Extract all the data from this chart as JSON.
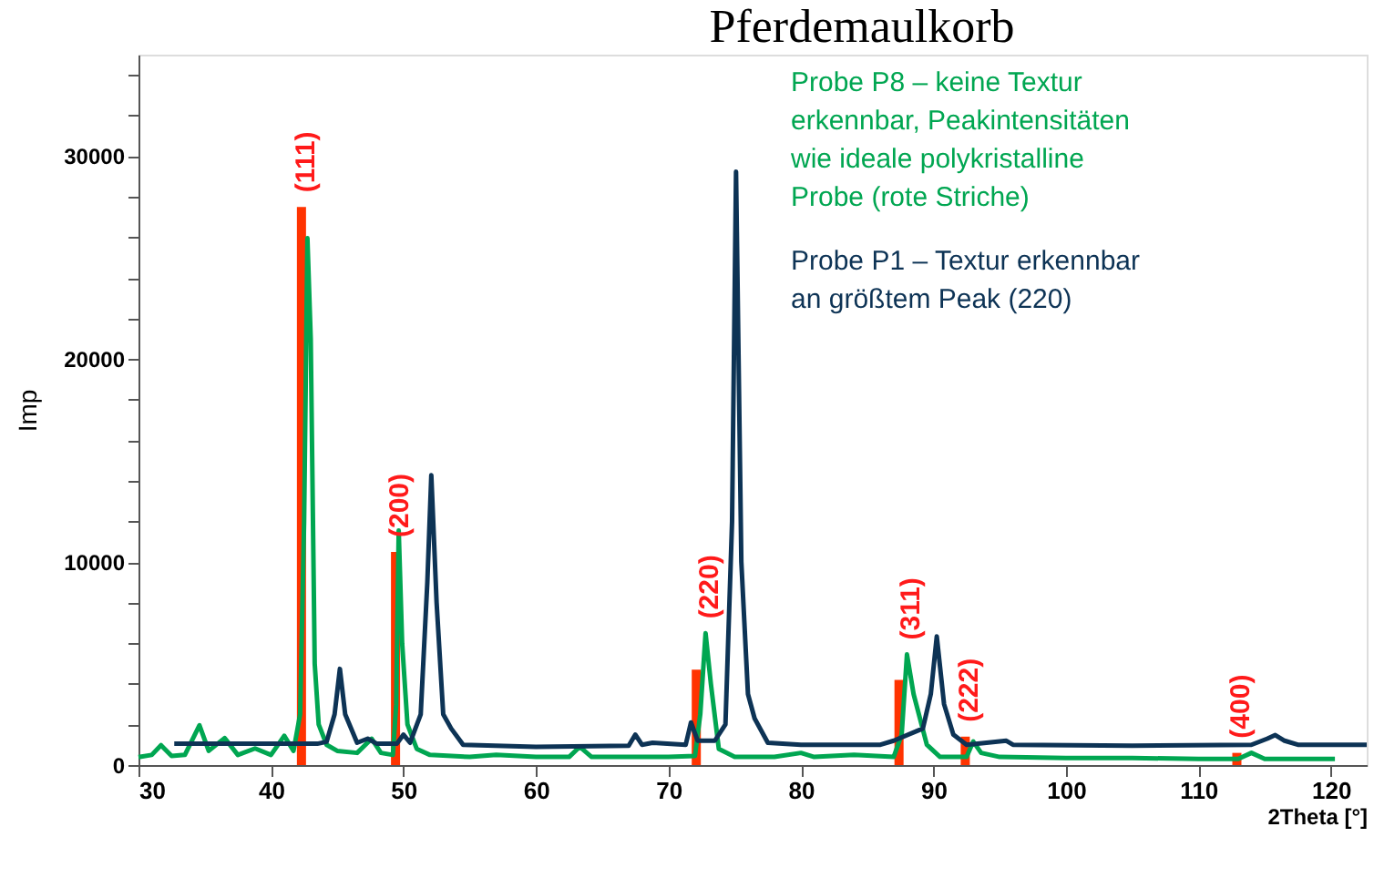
{
  "chart_data": {
    "type": "line",
    "title": "Pferdemaulkorb",
    "xlabel": "2Theta [°]",
    "ylabel": "Imp",
    "xlim": [
      30,
      122.7
    ],
    "ylim": [
      0,
      35000
    ],
    "xticks": [
      30,
      40,
      50,
      60,
      70,
      80,
      90,
      100,
      110,
      120
    ],
    "yticks": [
      {
        "value": 0,
        "label": "0"
      },
      {
        "value": 2000,
        "label": null
      },
      {
        "value": 4000,
        "label": null
      },
      {
        "value": 6000,
        "label": null
      },
      {
        "value": 8000,
        "label": null
      },
      10000,
      {
        "value": 12000,
        "label": null
      },
      {
        "value": 14000,
        "label": null
      },
      {
        "value": 16000,
        "label": null
      },
      {
        "value": 18000,
        "label": null
      },
      20000,
      {
        "value": 22000,
        "label": null
      },
      {
        "value": 24000,
        "label": null
      },
      {
        "value": 26000,
        "label": null
      },
      {
        "value": 28000,
        "label": null
      },
      30000,
      {
        "value": 32000,
        "label": null
      },
      {
        "value": 34000,
        "label": null
      }
    ],
    "grid": false,
    "legend": false,
    "marker": "none",
    "line_style": "solid",
    "series": [
      {
        "type": "bar",
        "color": "#ff3300",
        "x": [
          42.3,
          49.4,
          72.1,
          87.4,
          92.4,
          112.9
        ],
        "values": [
          27500,
          10500,
          4700,
          4200,
          1400,
          600
        ]
      },
      {
        "name": "Probe P8 – keine Textur\nerkennbar, Peakintensitäten\nwie ideale polykristalline\nProbe (rote Striche)",
        "color": "#00a651",
        "x": [
          30,
          31,
          31.7,
          32.5,
          33.5,
          34.6,
          35.3,
          36.5,
          37.5,
          38.8,
          40,
          41,
          41.7,
          42.2,
          42.5,
          42.75,
          43.0,
          43.3,
          43.6,
          44.2,
          45,
          46.5,
          47.6,
          48.3,
          49.2,
          49.45,
          49.64,
          49.9,
          50.3,
          51,
          52,
          55,
          57,
          60,
          62.5,
          63.3,
          64.2,
          67,
          70,
          72,
          72.4,
          72.8,
          73.2,
          73.8,
          75,
          78,
          80,
          81,
          84,
          87,
          87.6,
          88.0,
          88.5,
          89.5,
          90.5,
          92.5,
          93.0,
          93.6,
          95,
          100,
          105,
          110,
          113,
          114,
          115,
          118,
          120.3
        ],
        "values": [
          390,
          500,
          980,
          450,
          500,
          1960,
          700,
          1330,
          500,
          820,
          500,
          1440,
          700,
          2500,
          12000,
          25960,
          21000,
          5000,
          2000,
          1000,
          700,
          600,
          1300,
          600,
          500,
          3000,
          11550,
          6000,
          2000,
          800,
          500,
          400,
          500,
          400,
          400,
          900,
          400,
          400,
          400,
          450,
          2500,
          6490,
          4000,
          800,
          400,
          400,
          600,
          400,
          500,
          400,
          1500,
          5450,
          3500,
          1000,
          400,
          400,
          1160,
          600,
          400,
          350,
          350,
          300,
          300,
          600,
          300,
          300,
          300
        ]
      },
      {
        "name": "Probe P1 – Textur erkennbar\nan größtem Peak (220)",
        "color": "#0d3355",
        "x": [
          32.7,
          38,
          43.5,
          44.2,
          44.8,
          45.2,
          45.6,
          46.5,
          47.3,
          48,
          49.5,
          50,
          50.5,
          51.3,
          51.8,
          52.1,
          52.5,
          53,
          53.6,
          54.5,
          60,
          67,
          67.5,
          68,
          68.8,
          71.3,
          71.7,
          72.2,
          73.5,
          74.3,
          74.8,
          75.1,
          75.5,
          76,
          76.5,
          77.5,
          80,
          86,
          87,
          89.2,
          89.8,
          90.25,
          90.8,
          91.5,
          92.5,
          95.5,
          96,
          105,
          114,
          115.2,
          115.8,
          116.5,
          117.5,
          122.7
        ],
        "values": [
          1050,
          1050,
          1050,
          1150,
          2500,
          4740,
          2500,
          1100,
          1300,
          1050,
          1050,
          1500,
          1100,
          2500,
          9000,
          14280,
          8000,
          2500,
          1800,
          1000,
          900,
          950,
          1500,
          1000,
          1100,
          1000,
          2100,
          1200,
          1200,
          2000,
          12000,
          29230,
          10000,
          3500,
          2300,
          1100,
          1000,
          1000,
          1200,
          1800,
          3500,
          6340,
          3000,
          1500,
          1000,
          1200,
          1000,
          950,
          1000,
          1300,
          1480,
          1200,
          1000,
          1000
        ]
      }
    ],
    "annotations": [
      {
        "text": "(111)",
        "x": 42.3,
        "y": 27500
      },
      {
        "text": "(200)",
        "x": 49.4,
        "y": 10500
      },
      {
        "text": "(220)",
        "x": 72.8,
        "y": 6490
      },
      {
        "text": "(311)",
        "x": 88.0,
        "y": 5450
      },
      {
        "text": "(222)",
        "x": 92.4,
        "y": 1400
      },
      {
        "text": "(400)",
        "x": 112.9,
        "y": 600
      }
    ]
  }
}
